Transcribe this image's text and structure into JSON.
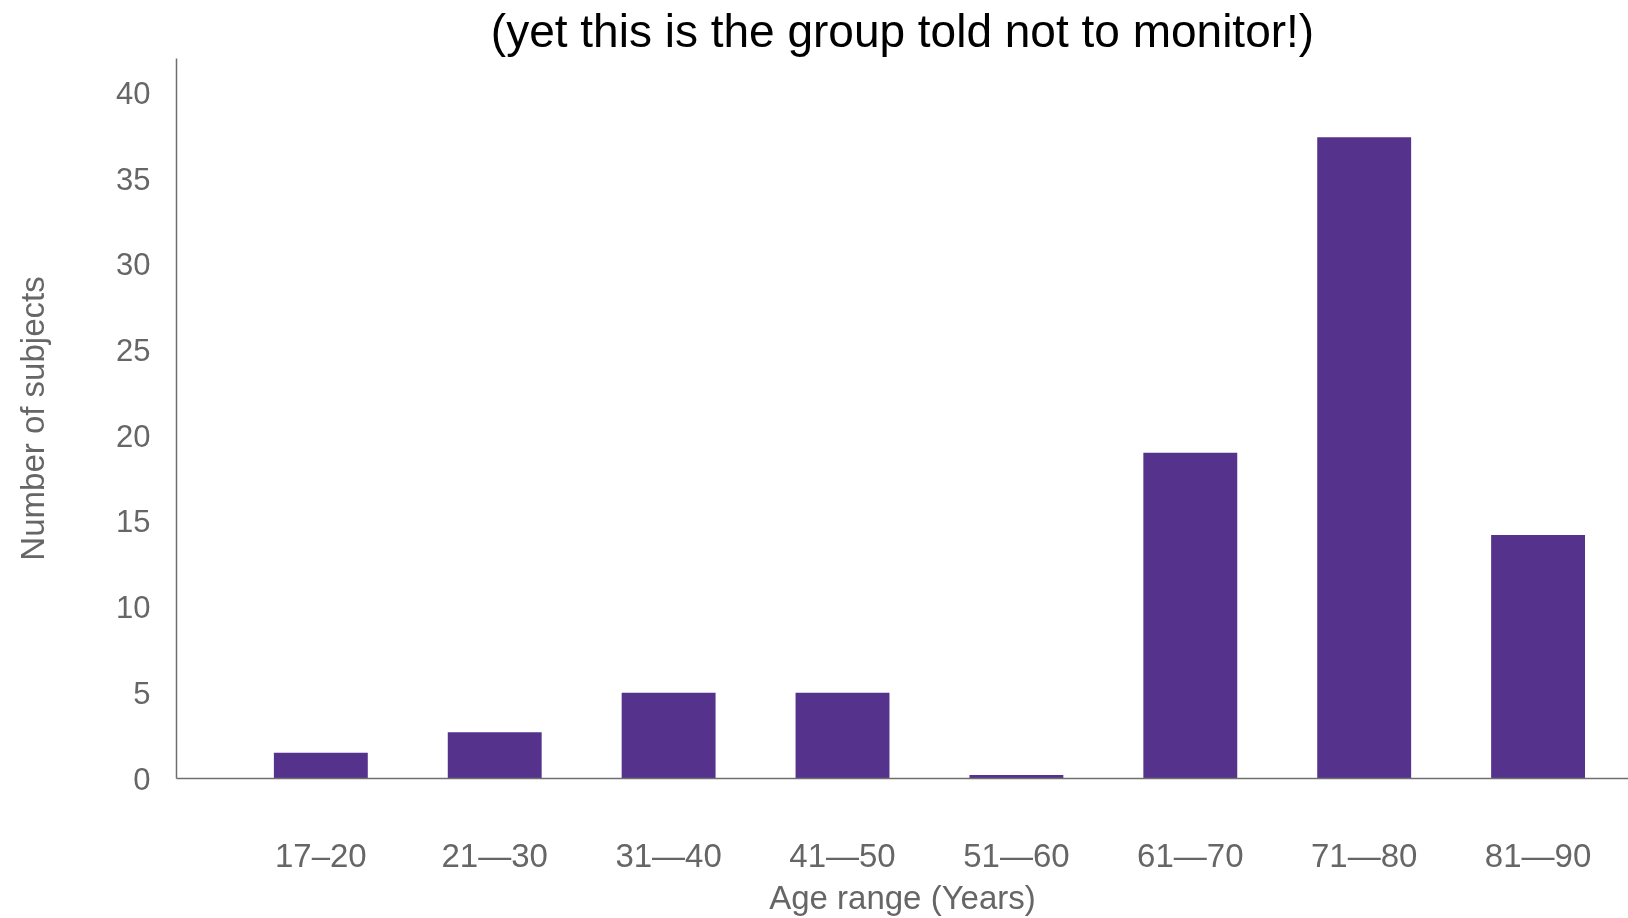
{
  "chart_data": {
    "type": "bar",
    "title": "(yet this is the group told not to monitor!)",
    "xlabel": "Age range (Years)",
    "ylabel": "Number of subjects",
    "categories": [
      "17–20",
      "21—30",
      "31—40",
      "41—50",
      "51—60",
      "61—70",
      "71—80",
      "81—90"
    ],
    "values": [
      1.5,
      2.7,
      5,
      5,
      0.2,
      19,
      37.4,
      14.2
    ],
    "color": "#55338d",
    "ylim": [
      0,
      42
    ],
    "yticks": [
      0,
      5,
      10,
      15,
      20,
      25,
      30,
      35,
      40
    ],
    "grid": false
  }
}
